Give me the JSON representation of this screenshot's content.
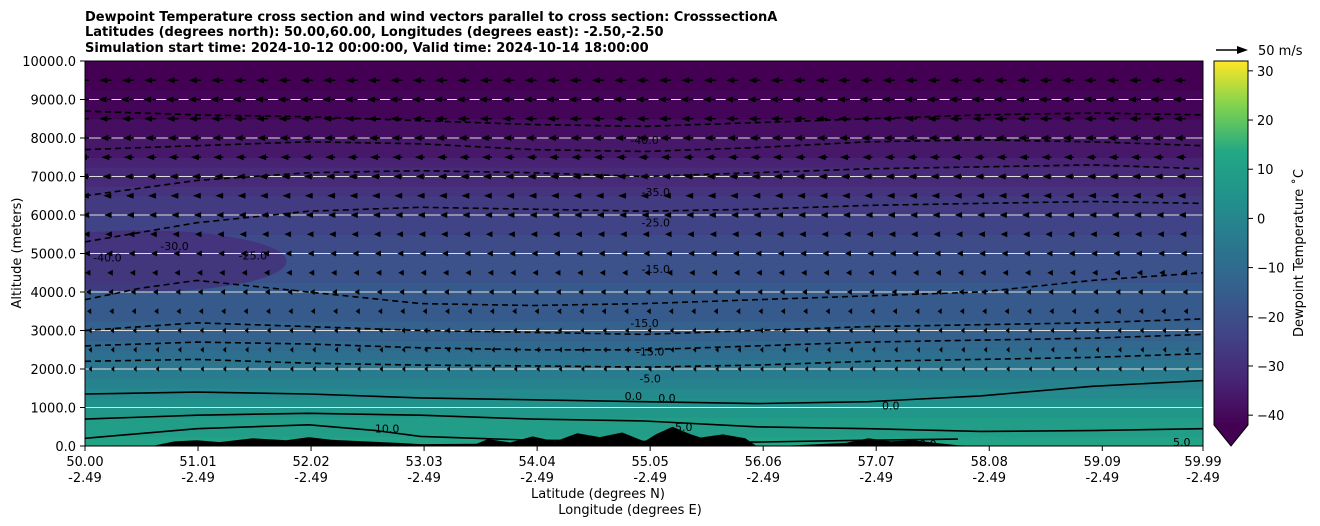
{
  "chart_data": {
    "type": "heatmap",
    "title_lines": [
      "Dewpoint Temperature cross section and wind vectors parallel to cross section: CrosssectionA",
      "Latitudes (degrees north): 50.00,60.00, Longitudes (degrees east): -2.50,-2.50",
      "Simulation start time: 2024-10-12 00:00:00, Valid time: 2024-10-14 18:00:00"
    ],
    "xlabel_lines": [
      "Latitude (degrees N)",
      "Longitude (degrees E)"
    ],
    "ylabel": "Altitude (meters)",
    "xlim": [
      50.0,
      59.99
    ],
    "ylim": [
      0,
      10000
    ],
    "x_ticks": [
      {
        "lat": "50.00",
        "lon": "-2.49",
        "value": 50.0
      },
      {
        "lat": "51.01",
        "lon": "-2.49",
        "value": 51.01
      },
      {
        "lat": "52.02",
        "lon": "-2.49",
        "value": 52.02
      },
      {
        "lat": "53.03",
        "lon": "-2.49",
        "value": 53.03
      },
      {
        "lat": "54.04",
        "lon": "-2.49",
        "value": 54.04
      },
      {
        "lat": "55.05",
        "lon": "-2.49",
        "value": 55.05
      },
      {
        "lat": "56.06",
        "lon": "-2.49",
        "value": 56.06
      },
      {
        "lat": "57.07",
        "lon": "-2.49",
        "value": 57.07
      },
      {
        "lat": "58.08",
        "lon": "-2.49",
        "value": 58.08
      },
      {
        "lat": "59.09",
        "lon": "-2.49",
        "value": 59.09
      },
      {
        "lat": "59.99",
        "lon": "-2.49",
        "value": 59.99
      }
    ],
    "y_ticks": [
      {
        "label": "0.0",
        "value": 0
      },
      {
        "label": "1000.0",
        "value": 1000
      },
      {
        "label": "2000.0",
        "value": 2000
      },
      {
        "label": "3000.0",
        "value": 3000
      },
      {
        "label": "4000.0",
        "value": 4000
      },
      {
        "label": "5000.0",
        "value": 5000
      },
      {
        "label": "6000.0",
        "value": 6000
      },
      {
        "label": "7000.0",
        "value": 7000
      },
      {
        "label": "8000.0",
        "value": 8000
      },
      {
        "label": "9000.0",
        "value": 9000
      },
      {
        "label": "10000.0",
        "value": 10000
      }
    ],
    "colorbar": {
      "label": "Dewpoint Temperature $^\\circ$C",
      "label_text": "Dewpoint Temperature ˚C",
      "min": -42,
      "max": 32,
      "ticks": [
        -40,
        -30,
        -20,
        -10,
        0,
        10,
        20,
        30
      ],
      "tick_labels": [
        "−40",
        "−30",
        "−20",
        "−10",
        "0",
        "10",
        "20",
        "30"
      ],
      "extend": "min",
      "colormap": "viridis"
    },
    "quiver_key": {
      "label": "50 m/s",
      "value": 50
    },
    "temperature_profile": [
      {
        "alt": 0,
        "temp": 12
      },
      {
        "alt": 500,
        "temp": 9
      },
      {
        "alt": 1000,
        "temp": 4
      },
      {
        "alt": 1500,
        "temp": -1
      },
      {
        "alt": 2000,
        "temp": -6
      },
      {
        "alt": 2500,
        "temp": -10
      },
      {
        "alt": 3000,
        "temp": -14
      },
      {
        "alt": 4000,
        "temp": -17
      },
      {
        "alt": 5000,
        "temp": -20
      },
      {
        "alt": 6000,
        "temp": -25
      },
      {
        "alt": 7000,
        "temp": -31
      },
      {
        "alt": 8000,
        "temp": -38
      },
      {
        "alt": 9000,
        "temp": -42
      },
      {
        "alt": 10000,
        "temp": -44
      }
    ],
    "contours": [
      {
        "level": -5.0,
        "style": "dashed",
        "points": [
          [
            50.0,
            2200
          ],
          [
            51.0,
            2250
          ],
          [
            52.0,
            2150
          ],
          [
            53.0,
            2100
          ],
          [
            54.0,
            2080
          ],
          [
            55.0,
            2050
          ],
          [
            56.0,
            2100
          ],
          [
            57.0,
            2200
          ],
          [
            58.0,
            2250
          ],
          [
            59.0,
            2300
          ],
          [
            59.99,
            2400
          ]
        ]
      },
      {
        "level": -10.0,
        "style": "dashed",
        "points": [
          [
            50.0,
            2600
          ],
          [
            51.0,
            2700
          ],
          [
            52.0,
            2650
          ],
          [
            53.0,
            2550
          ],
          [
            54.0,
            2500
          ],
          [
            55.0,
            2500
          ],
          [
            56.0,
            2600
          ],
          [
            57.0,
            2700
          ],
          [
            58.0,
            2750
          ],
          [
            59.0,
            2800
          ],
          [
            59.99,
            2900
          ]
        ]
      },
      {
        "level": -15.0,
        "style": "dashed",
        "points": [
          [
            50.0,
            3000
          ],
          [
            51.0,
            3200
          ],
          [
            52.0,
            3100
          ],
          [
            53.0,
            3000
          ],
          [
            54.0,
            2950
          ],
          [
            55.0,
            2900
          ],
          [
            56.0,
            3000
          ],
          [
            57.0,
            3100
          ],
          [
            58.0,
            3150
          ],
          [
            59.0,
            3200
          ],
          [
            59.99,
            3300
          ]
        ]
      },
      {
        "level": -20.0,
        "style": "dashed",
        "points": [
          [
            50.0,
            3800
          ],
          [
            50.5,
            4100
          ],
          [
            51.0,
            4300
          ],
          [
            52.0,
            4000
          ],
          [
            53.0,
            3700
          ],
          [
            54.0,
            3650
          ],
          [
            55.0,
            3700
          ],
          [
            56.0,
            3800
          ],
          [
            57.0,
            3900
          ],
          [
            58.0,
            4000
          ],
          [
            59.0,
            4300
          ],
          [
            59.99,
            4500
          ]
        ]
      },
      {
        "level": -25.0,
        "style": "dashed",
        "points": [
          [
            50.0,
            5300
          ],
          [
            51.0,
            5800
          ],
          [
            52.0,
            6100
          ],
          [
            53.0,
            6200
          ],
          [
            54.0,
            6150
          ],
          [
            55.0,
            6100
          ],
          [
            56.0,
            6150
          ],
          [
            57.0,
            6250
          ],
          [
            58.0,
            6300
          ],
          [
            59.0,
            6350
          ],
          [
            59.99,
            6300
          ]
        ]
      },
      {
        "level": -30.0,
        "style": "dashed",
        "points": [
          [
            50.0,
            6500
          ],
          [
            51.0,
            6900
          ],
          [
            52.0,
            7100
          ],
          [
            53.0,
            7150
          ],
          [
            54.0,
            7100
          ],
          [
            55.0,
            7000
          ],
          [
            56.0,
            7100
          ],
          [
            57.0,
            7200
          ],
          [
            58.0,
            7250
          ],
          [
            59.0,
            7300
          ],
          [
            59.99,
            7200
          ]
        ]
      },
      {
        "level": -35.0,
        "style": "dashed",
        "points": [
          [
            50.0,
            7700
          ],
          [
            51.0,
            7800
          ],
          [
            52.0,
            7900
          ],
          [
            53.0,
            7850
          ],
          [
            54.0,
            7700
          ],
          [
            55.0,
            7650
          ],
          [
            56.0,
            7750
          ],
          [
            57.0,
            7900
          ],
          [
            58.0,
            7950
          ],
          [
            59.0,
            7900
          ],
          [
            59.99,
            7800
          ]
        ]
      },
      {
        "level": -40.0,
        "style": "dashed",
        "points": [
          [
            50.0,
            8700
          ],
          [
            51.0,
            8600
          ],
          [
            52.0,
            8550
          ],
          [
            53.0,
            8450
          ],
          [
            54.0,
            8350
          ],
          [
            55.0,
            8300
          ],
          [
            56.0,
            8400
          ],
          [
            57.0,
            8500
          ],
          [
            58.0,
            8600
          ],
          [
            59.0,
            8650
          ],
          [
            59.99,
            8600
          ]
        ]
      },
      {
        "level": 0.0,
        "style": "solid",
        "points": [
          [
            50.0,
            1350
          ],
          [
            51.0,
            1400
          ],
          [
            52.0,
            1350
          ],
          [
            53.0,
            1250
          ],
          [
            54.0,
            1200
          ],
          [
            55.0,
            1150
          ],
          [
            56.0,
            1100
          ],
          [
            57.0,
            1150
          ],
          [
            58.0,
            1300
          ],
          [
            59.0,
            1550
          ],
          [
            59.99,
            1700
          ]
        ]
      },
      {
        "level": 5.0,
        "style": "solid",
        "points": [
          [
            50.0,
            700
          ],
          [
            51.0,
            800
          ],
          [
            52.0,
            850
          ],
          [
            53.0,
            800
          ],
          [
            54.0,
            700
          ],
          [
            55.0,
            650
          ],
          [
            56.0,
            500
          ],
          [
            57.0,
            450
          ],
          [
            58.0,
            380
          ],
          [
            59.0,
            400
          ],
          [
            59.99,
            450
          ]
        ]
      },
      {
        "level": 10.0,
        "style": "solid",
        "points": [
          [
            50.0,
            200
          ],
          [
            51.0,
            450
          ],
          [
            52.0,
            550
          ],
          [
            52.6,
            400
          ],
          [
            53.0,
            250
          ],
          [
            54.0,
            150
          ],
          [
            55.0,
            120
          ],
          [
            56.0,
            100
          ],
          [
            57.0,
            150
          ],
          [
            57.8,
            180
          ]
        ]
      }
    ],
    "contour_labels": [
      {
        "text": "-40.0",
        "x": 50.2,
        "y": 4900
      },
      {
        "text": "-30.0",
        "x": 50.8,
        "y": 5200
      },
      {
        "text": "-25.0",
        "x": 51.5,
        "y": 4950
      },
      {
        "text": "-40.0",
        "x": 55.0,
        "y": 7950
      },
      {
        "text": "-35.0",
        "x": 55.1,
        "y": 6600
      },
      {
        "text": "-25.0",
        "x": 55.1,
        "y": 5800
      },
      {
        "text": "-15.0",
        "x": 55.1,
        "y": 4600
      },
      {
        "text": "-15.0",
        "x": 55.0,
        "y": 3200
      },
      {
        "text": "-15.0",
        "x": 55.05,
        "y": 2450
      },
      {
        "text": "-5.0",
        "x": 55.05,
        "y": 1750
      },
      {
        "text": "0.0",
        "x": 54.9,
        "y": 1300
      },
      {
        "text": "0.0",
        "x": 55.2,
        "y": 1250
      },
      {
        "text": "0.0",
        "x": 57.2,
        "y": 1050
      },
      {
        "text": "5.0",
        "x": 55.35,
        "y": 500
      },
      {
        "text": "10.0",
        "x": 52.7,
        "y": 450
      },
      {
        "text": "10.0",
        "x": 57.5,
        "y": 50
      },
      {
        "text": "5.0",
        "x": 59.8,
        "y": 100
      }
    ],
    "terrain": [
      [
        50.0,
        0
      ],
      [
        50.6,
        0
      ],
      [
        50.8,
        120
      ],
      [
        51.0,
        150
      ],
      [
        51.2,
        100
      ],
      [
        51.5,
        200
      ],
      [
        51.8,
        150
      ],
      [
        52.0,
        230
      ],
      [
        52.2,
        160
      ],
      [
        52.5,
        120
      ],
      [
        52.8,
        80
      ],
      [
        53.0,
        50
      ],
      [
        53.5,
        60
      ],
      [
        53.6,
        180
      ],
      [
        53.8,
        90
      ],
      [
        54.0,
        250
      ],
      [
        54.2,
        120
      ],
      [
        54.4,
        330
      ],
      [
        54.6,
        230
      ],
      [
        54.8,
        350
      ],
      [
        55.0,
        120
      ],
      [
        55.1,
        300
      ],
      [
        55.25,
        500
      ],
      [
        55.4,
        320
      ],
      [
        55.5,
        220
      ],
      [
        55.7,
        300
      ],
      [
        55.9,
        200
      ],
      [
        56.0,
        0
      ],
      [
        56.2,
        0
      ],
      [
        56.8,
        80
      ],
      [
        57.0,
        200
      ],
      [
        57.2,
        120
      ],
      [
        57.4,
        150
      ],
      [
        57.6,
        80
      ],
      [
        57.8,
        20
      ],
      [
        58.0,
        0
      ],
      [
        59.99,
        0
      ]
    ],
    "wind_vectors": {
      "x_columns": [
        50.0,
        50.2,
        50.4,
        50.6,
        50.8,
        51.0,
        51.2,
        51.4,
        51.6,
        51.8,
        52.0,
        52.2,
        52.4,
        52.6,
        52.8,
        53.0,
        53.2,
        53.4,
        53.6,
        53.8,
        54.0,
        54.2,
        54.4,
        54.6,
        54.8,
        55.0,
        55.2,
        55.4,
        55.6,
        55.8,
        56.0,
        56.2,
        56.4,
        56.6,
        56.8,
        57.0,
        57.2,
        57.4,
        57.6,
        57.8,
        58.0,
        58.2,
        58.4,
        58.6,
        58.8,
        59.0,
        59.2,
        59.4,
        59.6,
        59.8
      ],
      "profile": [
        {
          "alt": 9500,
          "u": -12
        },
        {
          "alt": 9000,
          "u": -13
        },
        {
          "alt": 8500,
          "u": -12
        },
        {
          "alt": 8000,
          "u": -11
        },
        {
          "alt": 7500,
          "u": -10
        },
        {
          "alt": 7000,
          "u": -9
        },
        {
          "alt": 6500,
          "u": -8
        },
        {
          "alt": 6000,
          "u": -7
        },
        {
          "alt": 5500,
          "u": -6
        },
        {
          "alt": 5000,
          "u": -5
        },
        {
          "alt": 4500,
          "u": -4
        },
        {
          "alt": 4000,
          "u": -3
        },
        {
          "alt": 3500,
          "u": -2
        },
        {
          "alt": 3000,
          "u": -1
        },
        {
          "alt": 2500,
          "u": -0.5
        },
        {
          "alt": 2000,
          "u": -0.3
        }
      ]
    }
  }
}
